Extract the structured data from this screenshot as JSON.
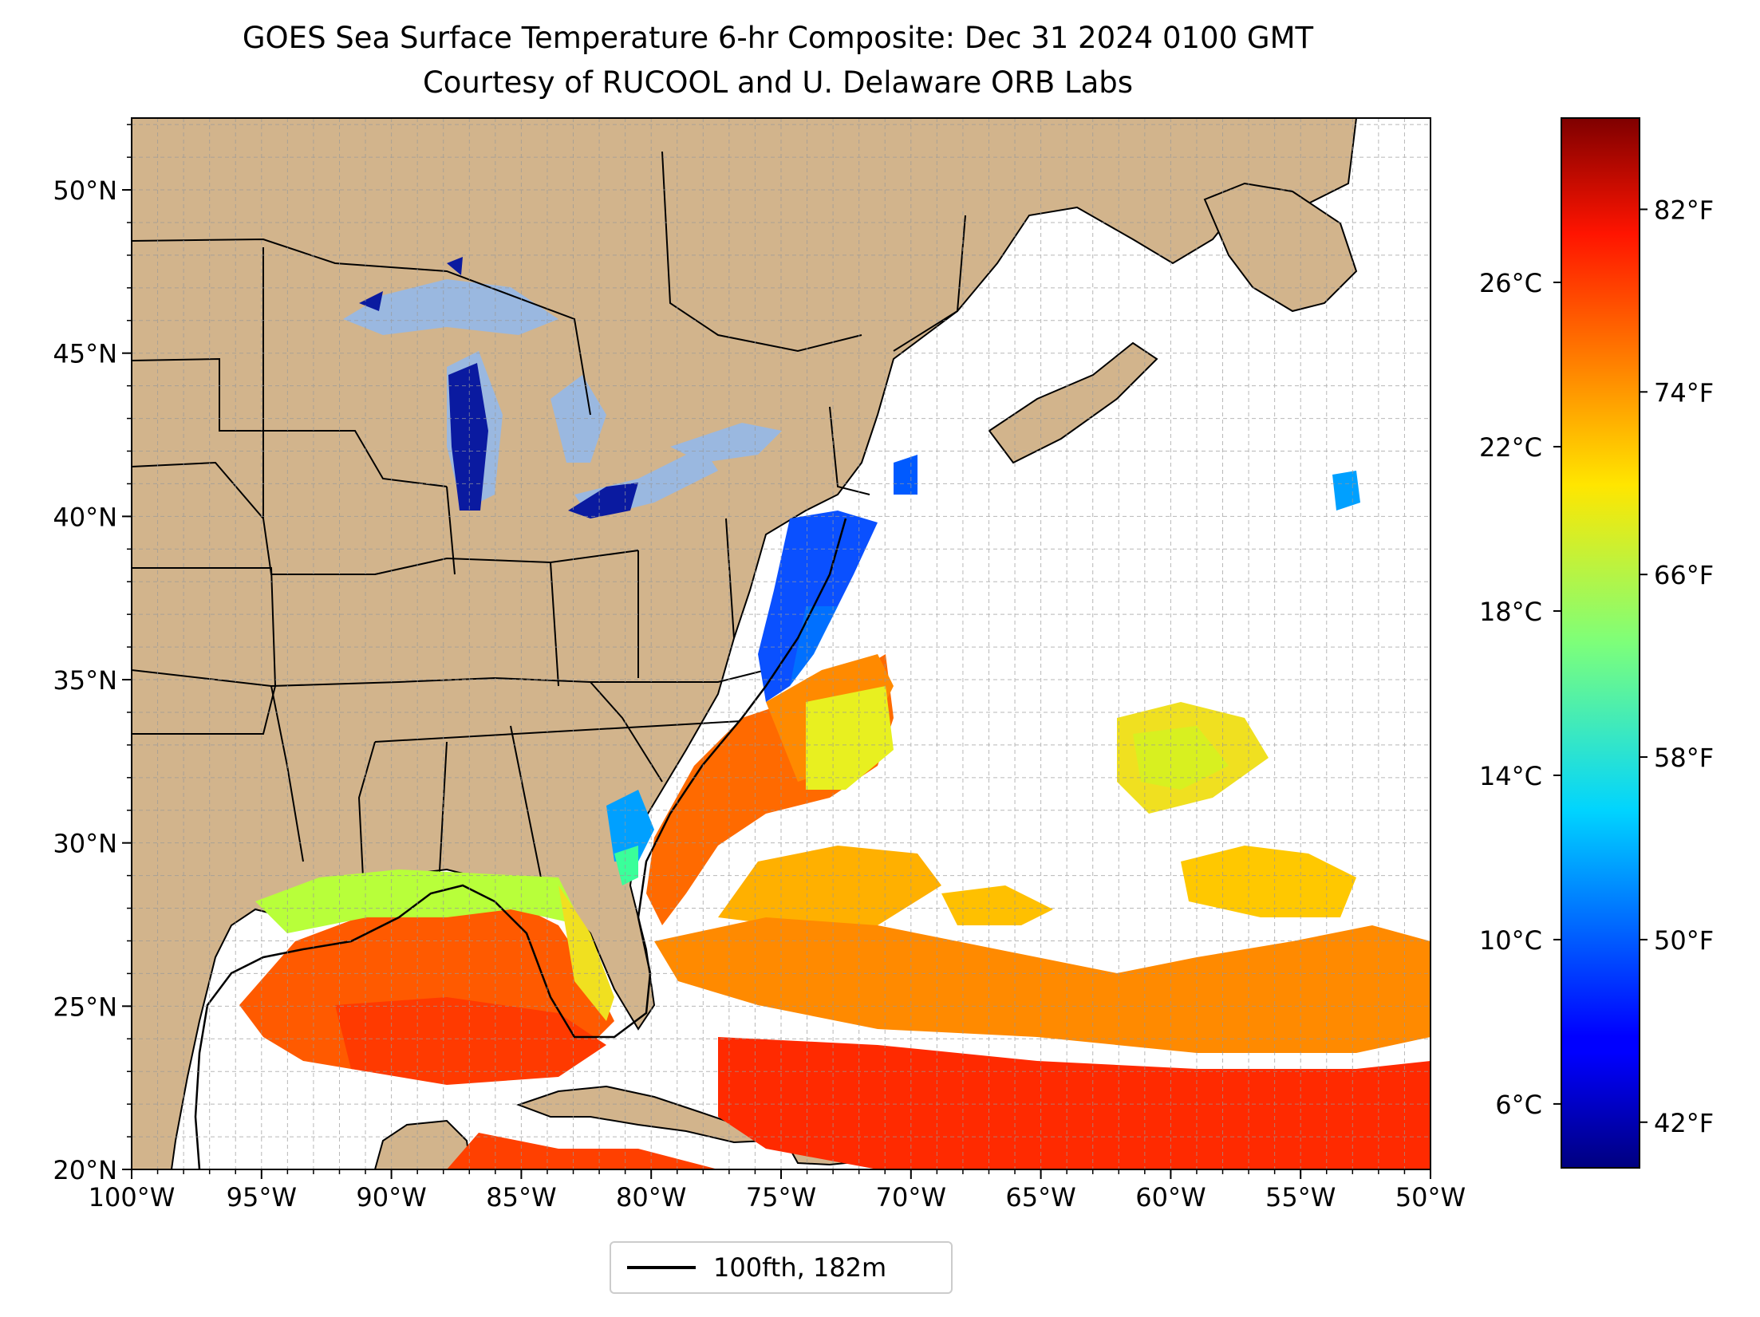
{
  "title": {
    "line1": "GOES Sea Surface Temperature 6-hr Composite: Dec 31 2024 0100 GMT",
    "line2": "Courtesy of RUCOOL and U. Delaware ORB Labs"
  },
  "map": {
    "lon_range": [
      -100,
      -50
    ],
    "lat_range": [
      20,
      52.2
    ],
    "lat_ticks": [
      {
        "value": 20,
        "label": "20°N"
      },
      {
        "value": 25,
        "label": "25°N"
      },
      {
        "value": 30,
        "label": "30°N"
      },
      {
        "value": 35,
        "label": "35°N"
      },
      {
        "value": 40,
        "label": "40°N"
      },
      {
        "value": 45,
        "label": "45°N"
      },
      {
        "value": 50,
        "label": "50°N"
      }
    ],
    "lon_ticks": [
      {
        "value": -100,
        "label": "100°W"
      },
      {
        "value": -95,
        "label": "95°W"
      },
      {
        "value": -90,
        "label": "90°W"
      },
      {
        "value": -85,
        "label": "85°W"
      },
      {
        "value": -80,
        "label": "80°W"
      },
      {
        "value": -75,
        "label": "75°W"
      },
      {
        "value": -70,
        "label": "70°W"
      },
      {
        "value": -65,
        "label": "65°W"
      },
      {
        "value": -60,
        "label": "60°W"
      },
      {
        "value": -55,
        "label": "55°W"
      },
      {
        "value": -50,
        "label": "50°W"
      }
    ],
    "gridlines": true,
    "colors": {
      "land": "#d2b48c",
      "lakes": "#9ab8e0",
      "ocean_nodata": "#ffffff",
      "borders": "#000000",
      "grid": "#aaaaaa"
    }
  },
  "colorbar": {
    "colormap": "jet",
    "celsius_ticks": [
      {
        "value": 6,
        "label": "6°C"
      },
      {
        "value": 10,
        "label": "10°C"
      },
      {
        "value": 14,
        "label": "14°C"
      },
      {
        "value": 18,
        "label": "18°C"
      },
      {
        "value": 22,
        "label": "22°C"
      },
      {
        "value": 26,
        "label": "26°C"
      }
    ],
    "fahrenheit_ticks": [
      {
        "value": 42,
        "label": "42°F"
      },
      {
        "value": 50,
        "label": "50°F"
      },
      {
        "value": 58,
        "label": "58°F"
      },
      {
        "value": 66,
        "label": "66°F"
      },
      {
        "value": 74,
        "label": "74°F"
      },
      {
        "value": 82,
        "label": "82°F"
      }
    ],
    "range_f": [
      40,
      86
    ]
  },
  "legend": {
    "label": "100fth, 182m",
    "line_color": "#000000"
  }
}
